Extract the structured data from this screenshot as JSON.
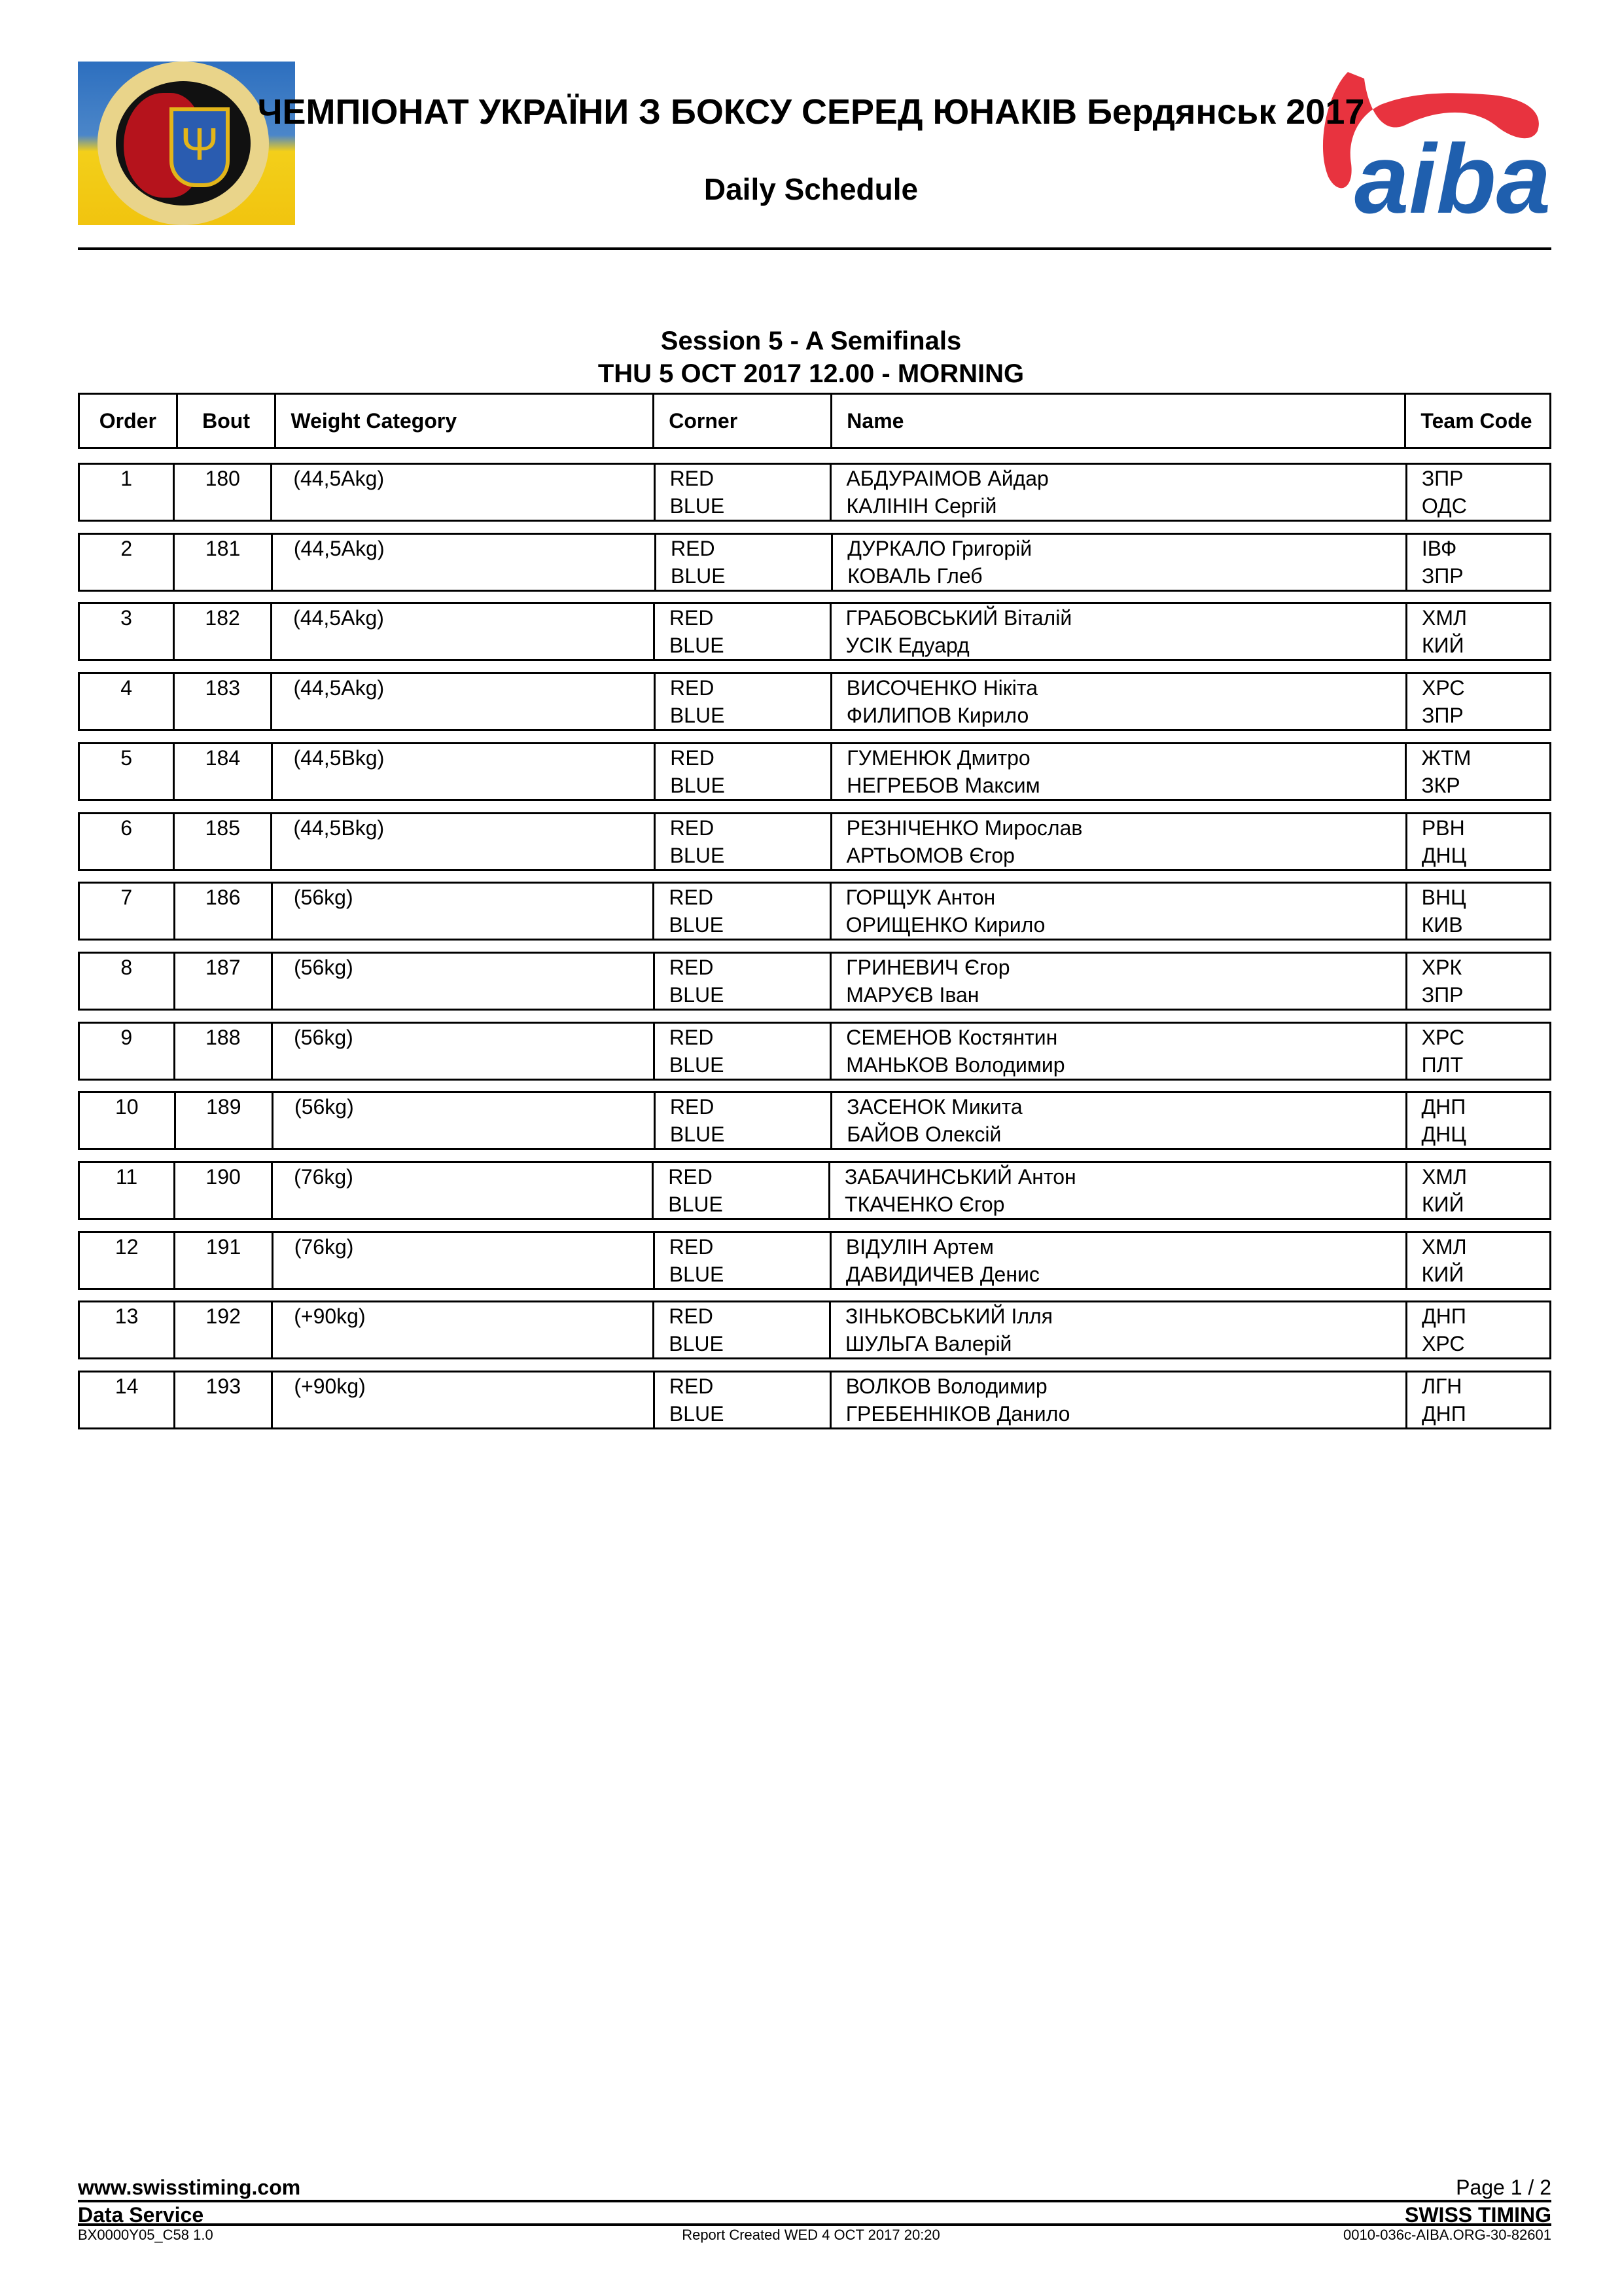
{
  "header": {
    "title": "ЧЕМПІОНАТ УКРАЇНИ З БОКСУ СЕРЕД ЮНАКІВ Бердянськ 2017",
    "subtitle": "Daily Schedule",
    "left_logo": "Ukrainian Boxing Federation emblem",
    "right_logo_text": "aiba",
    "brand_colors": {
      "aiba_red": "#e8333f",
      "aiba_blue": "#1f5fae"
    }
  },
  "session": {
    "title": "Session 5 - A Semifinals",
    "datetime": "THU 5 OCT 2017  12.00 - MORNING"
  },
  "table": {
    "headers": {
      "order": "Order",
      "bout": "Bout",
      "weight": "Weight Category",
      "corner": "Corner",
      "name": "Name",
      "team": "Team Code"
    },
    "rows": [
      {
        "order": "1",
        "bout": "180",
        "weight": "(44,5Akg)",
        "corner_red": "RED",
        "corner_blue": "BLUE",
        "red_name": "АБДУРАІМОВ Айдар",
        "blue_name": "КАЛІНІН Сергій",
        "red_team": "ЗПР",
        "blue_team": "ОДС"
      },
      {
        "order": "2",
        "bout": "181",
        "weight": "(44,5Akg)",
        "corner_red": "RED",
        "corner_blue": "BLUE",
        "red_name": "ДУРКАЛО Григорій",
        "blue_name": "КОВАЛЬ Глеб",
        "red_team": "ІВФ",
        "blue_team": "ЗПР"
      },
      {
        "order": "3",
        "bout": "182",
        "weight": "(44,5Akg)",
        "corner_red": "RED",
        "corner_blue": "BLUE",
        "red_name": "ГРАБОВСЬКИЙ Віталій",
        "blue_name": "УСІК Едуард",
        "red_team": "ХМЛ",
        "blue_team": "КИЙ"
      },
      {
        "order": "4",
        "bout": "183",
        "weight": "(44,5Akg)",
        "corner_red": "RED",
        "corner_blue": "BLUE",
        "red_name": "ВИСОЧЕНКО Нікіта",
        "blue_name": "ФИЛИПОВ Кирило",
        "red_team": "ХРС",
        "blue_team": "ЗПР"
      },
      {
        "order": "5",
        "bout": "184",
        "weight": "(44,5Bkg)",
        "corner_red": "RED",
        "corner_blue": "BLUE",
        "red_name": "ГУМЕНЮК Дмитро",
        "blue_name": "НЕГРЕБОВ Максим",
        "red_team": "ЖТМ",
        "blue_team": "ЗКР"
      },
      {
        "order": "6",
        "bout": "185",
        "weight": "(44,5Bkg)",
        "corner_red": "RED",
        "corner_blue": "BLUE",
        "red_name": "РЕЗНІЧЕНКО Мирослав",
        "blue_name": "АРТЬОМОВ Єгор",
        "red_team": "РВН",
        "blue_team": "ДНЦ"
      },
      {
        "order": "7",
        "bout": "186",
        "weight": "(56kg)",
        "corner_red": "RED",
        "corner_blue": "BLUE",
        "red_name": "ГОРЩУК Антон",
        "blue_name": "ОРИЩЕНКО Кирило",
        "red_team": "ВНЦ",
        "blue_team": "КИВ"
      },
      {
        "order": "8",
        "bout": "187",
        "weight": "(56kg)",
        "corner_red": "RED",
        "corner_blue": "BLUE",
        "red_name": "ГРИНЕВИЧ Єгор",
        "blue_name": "МАРУЄВ Іван",
        "red_team": "ХРК",
        "blue_team": "ЗПР"
      },
      {
        "order": "9",
        "bout": "188",
        "weight": "(56kg)",
        "corner_red": "RED",
        "corner_blue": "BLUE",
        "red_name": "СЕМЕНОВ Костянтин",
        "blue_name": "МАНЬКОВ Володимир",
        "red_team": "ХРС",
        "blue_team": "ПЛТ"
      },
      {
        "order": "10",
        "bout": "189",
        "weight": "(56kg)",
        "corner_red": "RED",
        "corner_blue": "BLUE",
        "red_name": "ЗАСЕНОК Микита",
        "blue_name": "БАЙОВ Олексій",
        "red_team": "ДНП",
        "blue_team": "ДНЦ"
      },
      {
        "order": "11",
        "bout": "190",
        "weight": "(76kg)",
        "corner_red": "RED",
        "corner_blue": "BLUE",
        "red_name": "ЗАБАЧИНСЬКИЙ Антон",
        "blue_name": "ТКАЧЕНКО Єгор",
        "red_team": "ХМЛ",
        "blue_team": "КИЙ"
      },
      {
        "order": "12",
        "bout": "191",
        "weight": "(76kg)",
        "corner_red": "RED",
        "corner_blue": "BLUE",
        "red_name": "ВІДУЛІН Артем",
        "blue_name": "ДАВИДИЧЕВ Денис",
        "red_team": "ХМЛ",
        "blue_team": "КИЙ"
      },
      {
        "order": "13",
        "bout": "192",
        "weight": "(+90kg)",
        "corner_red": "RED",
        "corner_blue": "BLUE",
        "red_name": "ЗІНЬКОВСЬКИЙ Ілля",
        "blue_name": "ШУЛЬГА Валерій",
        "red_team": "ДНП",
        "blue_team": "ХРС"
      },
      {
        "order": "14",
        "bout": "193",
        "weight": "(+90kg)",
        "corner_red": "RED",
        "corner_blue": "BLUE",
        "red_name": "ВОЛКОВ Володимир",
        "blue_name": "ГРЕБЕННІКОВ Данило",
        "red_team": "ЛГН",
        "blue_team": "ДНП"
      }
    ]
  },
  "footer": {
    "website": "www.swisstiming.com",
    "page": "Page 1 / 2",
    "left_label": "Data Service",
    "right_label": "SWISS TIMING",
    "report_code": "BX0000Y05_C58 1.0",
    "report_created": "Report Created  WED 4 OCT 2017 20:20",
    "doc_id": "0010-036c-AIBA.ORG-30-82601"
  }
}
